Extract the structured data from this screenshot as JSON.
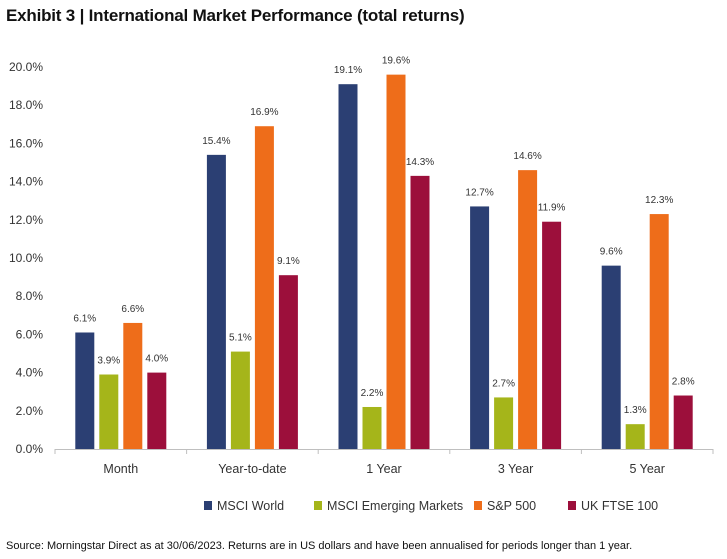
{
  "title": "Exhibit 3 | International Market Performance (total returns)",
  "source": "Source: Morningstar Direct as at 30/06/2023. Returns are in US dollars and have been annualised for periods longer than 1 year.",
  "chart_data": {
    "type": "bar",
    "title": "Exhibit 3 | International Market Performance (total returns)",
    "categories": [
      "Month",
      "Year-to-date",
      "1 Year",
      "3 Year",
      "5 Year"
    ],
    "series": [
      {
        "name": "MSCI World",
        "color": "#2b3f73",
        "values": [
          6.1,
          15.4,
          19.1,
          12.7,
          9.6
        ]
      },
      {
        "name": "MSCI Emerging Markets",
        "color": "#a5b51a",
        "values": [
          3.9,
          5.1,
          2.2,
          2.7,
          1.3
        ]
      },
      {
        "name": "S&P 500",
        "color": "#ee6d1a",
        "values": [
          6.6,
          16.9,
          19.6,
          14.6,
          12.3
        ]
      },
      {
        "name": "UK FTSE 100",
        "color": "#9c0f3b",
        "values": [
          4.0,
          9.1,
          14.3,
          11.9,
          2.8
        ]
      }
    ],
    "data_labels": [
      [
        "6.1%",
        "15.4%",
        "19.1%",
        "12.7%",
        "9.6%"
      ],
      [
        "3.9%",
        "5.1%",
        "2.2%",
        "2.7%",
        "1.3%"
      ],
      [
        "6.6%",
        "16.9%",
        "19.6%",
        "14.6%",
        "12.3%"
      ],
      [
        "4.0%",
        "9.1%",
        "14.3%",
        "11.9%",
        "2.8%"
      ]
    ],
    "ylim": [
      0,
      20
    ],
    "yticks": [
      0,
      2,
      4,
      6,
      8,
      10,
      12,
      14,
      16,
      18,
      20
    ],
    "ytick_labels": [
      "0.0%",
      "2.0%",
      "4.0%",
      "6.0%",
      "8.0%",
      "10.0%",
      "12.0%",
      "14.0%",
      "16.0%",
      "18.0%",
      "20.0%"
    ],
    "xlabel": "",
    "ylabel": "",
    "grid": false,
    "legend": "bottom"
  }
}
